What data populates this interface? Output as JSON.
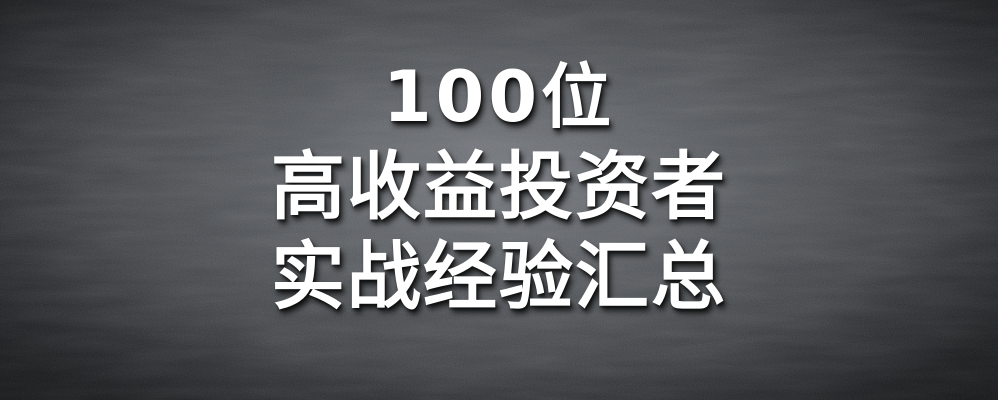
{
  "headline": {
    "line1": "100位",
    "line2": "高收益投资者",
    "line3": "实战经验汇总"
  },
  "colors": {
    "text": "#ffffff",
    "background_center": "#7a7e84",
    "background_edge": "#1e2023"
  }
}
